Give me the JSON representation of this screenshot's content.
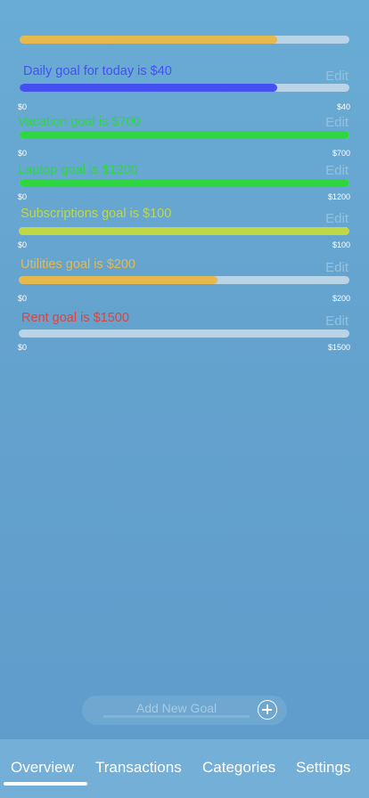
{
  "overall": {
    "progress": 0.78,
    "color": "#e5b94e"
  },
  "goals": [
    {
      "title": "Daily goal for today is $40",
      "edit": "Edit",
      "min": "$0",
      "max": "$40",
      "progress": 0.78,
      "color": "#4451f0"
    },
    {
      "title": "Vacation goal is $700",
      "edit": "Edit",
      "min": "$0",
      "max": "$700",
      "progress": 1.0,
      "color": "#2fd642"
    },
    {
      "title": "Laptop goal is $1200",
      "edit": "Edit",
      "min": "$0",
      "max": "$1200",
      "progress": 1.0,
      "color": "#2fd642"
    },
    {
      "title": "Subscriptions goal is $100",
      "edit": "Edit",
      "min": "$0",
      "max": "$100",
      "progress": 1.0,
      "color": "#bfd844"
    },
    {
      "title": "Utilities goal is $200",
      "edit": "Edit",
      "min": "$0",
      "max": "$200",
      "progress": 0.6,
      "color": "#e5b94e"
    },
    {
      "title": "Rent goal is $1500",
      "edit": "Edit",
      "min": "$0",
      "max": "$1500",
      "progress": 0.0,
      "color": "#d9453f"
    }
  ],
  "add_goal": {
    "placeholder": "Add New Goal",
    "icon": "plus-circle-icon"
  },
  "tabs": [
    {
      "label": "Overview",
      "active": true
    },
    {
      "label": "Transactions",
      "active": false
    },
    {
      "label": "Categories",
      "active": false
    },
    {
      "label": "Settings",
      "active": false
    }
  ]
}
